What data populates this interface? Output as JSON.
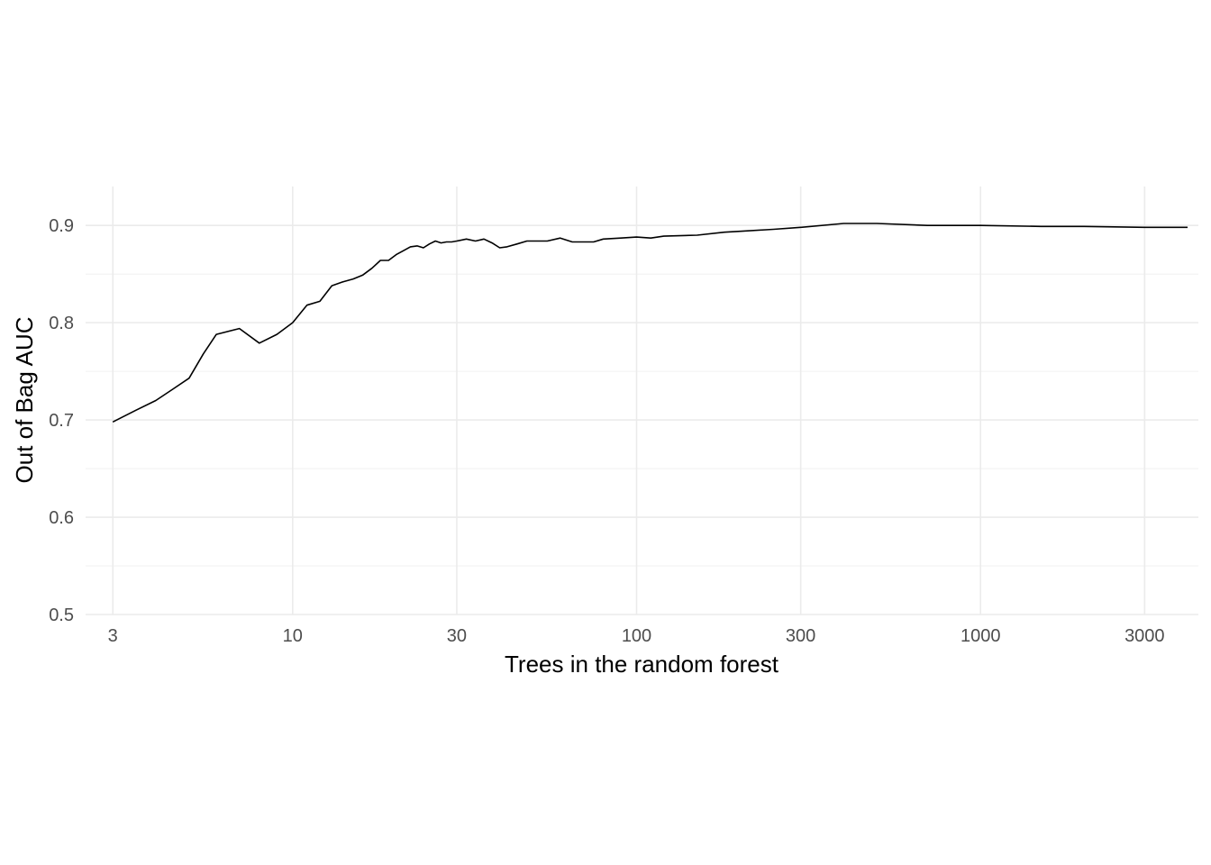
{
  "chart_data": {
    "type": "line",
    "title": "",
    "xlabel": "Trees in the random forest",
    "ylabel": "Out of Bag AUC",
    "x_scale": "log10",
    "xlim": [
      2.5,
      4300
    ],
    "ylim": [
      0.5,
      0.94
    ],
    "x_ticks": [
      3,
      10,
      30,
      100,
      300,
      1000,
      3000
    ],
    "x_tick_labels": [
      "3",
      "10",
      "30",
      "100",
      "300",
      "1000",
      "3000"
    ],
    "y_ticks": [
      0.5,
      0.6,
      0.7,
      0.8,
      0.9
    ],
    "y_tick_labels": [
      "0.5",
      "0.6",
      "0.7",
      "0.8",
      "0.9"
    ],
    "grid": true,
    "legend": "none",
    "series": [
      {
        "color": "#000000",
        "x": [
          3,
          3.5,
          4,
          4.5,
          5,
          5.5,
          6,
          7,
          8,
          9,
          10,
          11,
          12,
          13,
          14,
          15,
          16,
          17,
          18,
          19,
          20,
          21,
          22,
          23,
          24,
          25,
          26,
          27,
          28,
          29,
          30,
          32,
          34,
          36,
          38,
          40,
          42,
          45,
          48,
          50,
          55,
          60,
          65,
          70,
          75,
          80,
          90,
          100,
          110,
          120,
          150,
          180,
          200,
          250,
          300,
          400,
          500,
          700,
          1000,
          1500,
          2000,
          3000,
          4000
        ],
        "y": [
          0.698,
          0.71,
          0.72,
          0.732,
          0.743,
          0.768,
          0.788,
          0.794,
          0.779,
          0.788,
          0.8,
          0.818,
          0.822,
          0.838,
          0.842,
          0.845,
          0.849,
          0.856,
          0.864,
          0.864,
          0.87,
          0.874,
          0.878,
          0.879,
          0.877,
          0.881,
          0.884,
          0.882,
          0.883,
          0.883,
          0.884,
          0.886,
          0.884,
          0.886,
          0.882,
          0.877,
          0.878,
          0.881,
          0.884,
          0.884,
          0.884,
          0.887,
          0.883,
          0.883,
          0.883,
          0.886,
          0.887,
          0.888,
          0.887,
          0.889,
          0.89,
          0.893,
          0.894,
          0.896,
          0.898,
          0.902,
          0.902,
          0.9,
          0.9,
          0.899,
          0.899,
          0.898,
          0.898
        ]
      }
    ]
  }
}
